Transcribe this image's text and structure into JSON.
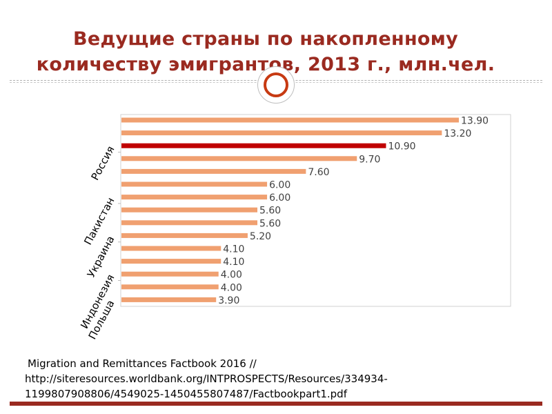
{
  "title": {
    "line1": "Ведущие страны по накопленному",
    "line2": "количеству эмигрантов, 2013 г., млн.чел."
  },
  "colors": {
    "title": "#9a2a20",
    "bar": "#f0a070",
    "bar_highlight": "#c00000",
    "accent_circle": "#c73a12",
    "bottom_bar": "#9a2a20"
  },
  "chart_data": {
    "type": "bar",
    "orientation": "horizontal",
    "values": [
      13.9,
      13.2,
      10.9,
      9.7,
      7.6,
      6.0,
      6.0,
      5.6,
      5.6,
      5.2,
      4.1,
      4.1,
      4.0,
      4.0,
      3.9
    ],
    "value_labels": [
      "13.90",
      "13.20",
      "10.90",
      "9.70",
      "7.60",
      "6.00",
      "6.00",
      "5.60",
      "5.60",
      "5.20",
      "4.10",
      "4.10",
      "4.00",
      "4.00",
      "3.90"
    ],
    "highlight_index": 2,
    "category_labels": [
      {
        "text": "Россия",
        "bar_index": 2
      },
      {
        "text": "Пакистан",
        "bar_index": 6
      },
      {
        "text": "Украина",
        "bar_index": 9
      },
      {
        "text": "Индонезия",
        "bar_index": 12
      },
      {
        "text": "Польша",
        "bar_index": 14
      }
    ],
    "xlim": [
      0,
      16
    ],
    "grid": false,
    "legend": "none"
  },
  "source": {
    "line1": "Migration and Remittances Factbook 2016 //",
    "line2": "http://siteresources.worldbank.org/INTPROSPECTS/Resources/334934-",
    "line3": "1199807908806/4549025-1450455807487/Factbookpart1.pdf"
  }
}
